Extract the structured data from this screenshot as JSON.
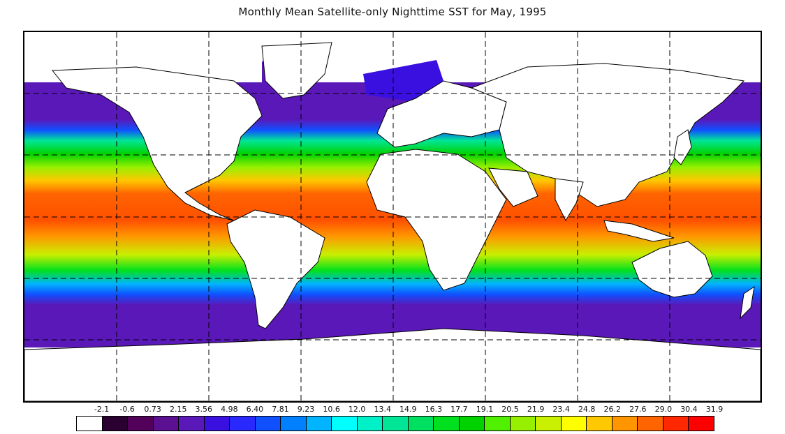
{
  "title": "Monthly Mean Satellite-only Nighttime SST for May, 1995",
  "legend": {
    "ticks": [
      "-2.1",
      "-0.6",
      "0.73",
      "2.15",
      "3.56",
      "4.98",
      "6.40",
      "7.81",
      "9.23",
      "10.6",
      "12.0",
      "13.4",
      "14.9",
      "16.3",
      "17.7",
      "19.1",
      "20.5",
      "21.9",
      "23.4",
      "24.8",
      "26.2",
      "27.6",
      "29.0",
      "30.4",
      "31.9"
    ],
    "colors": [
      "#ffffff",
      "#2a0030",
      "#52005a",
      "#5a1090",
      "#5a18b8",
      "#3a10e0",
      "#2828ff",
      "#1050ff",
      "#0080ff",
      "#00b4ff",
      "#00ffff",
      "#00f0c8",
      "#00e696",
      "#00e060",
      "#00e01e",
      "#00d200",
      "#50f000",
      "#96f000",
      "#c8f000",
      "#ffff00",
      "#ffc800",
      "#ff9600",
      "#ff6400",
      "#ff2800",
      "#ff0000"
    ]
  },
  "map": {
    "projection": "equirectangular",
    "grid": "dashed",
    "lon_range": [
      -180,
      180
    ],
    "lat_range": [
      -90,
      90
    ]
  }
}
